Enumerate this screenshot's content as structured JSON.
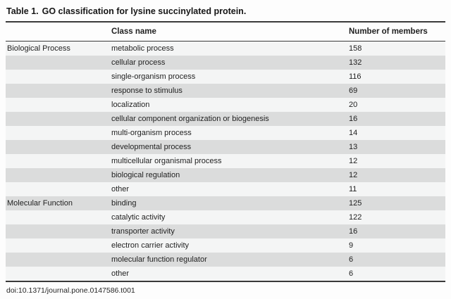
{
  "title": {
    "label": "Table 1.",
    "text": "GO classification for lysine succinylated protein."
  },
  "table": {
    "headers": {
      "category": "",
      "class_name": "Class name",
      "members": "Number of members"
    },
    "rows": [
      {
        "category": "Biological Process",
        "class_name": "metabolic process",
        "members": "158"
      },
      {
        "category": "",
        "class_name": "cellular process",
        "members": "132"
      },
      {
        "category": "",
        "class_name": "single-organism process",
        "members": "116"
      },
      {
        "category": "",
        "class_name": "response to stimulus",
        "members": "69"
      },
      {
        "category": "",
        "class_name": "localization",
        "members": "20"
      },
      {
        "category": "",
        "class_name": "cellular component organization or biogenesis",
        "members": "16"
      },
      {
        "category": "",
        "class_name": "multi-organism process",
        "members": "14"
      },
      {
        "category": "",
        "class_name": "developmental process",
        "members": "13"
      },
      {
        "category": "",
        "class_name": "multicellular organismal process",
        "members": "12"
      },
      {
        "category": "",
        "class_name": "biological regulation",
        "members": "12"
      },
      {
        "category": "",
        "class_name": "other",
        "members": "11"
      },
      {
        "category": "Molecular Function",
        "class_name": "binding",
        "members": "125"
      },
      {
        "category": "",
        "class_name": "catalytic activity",
        "members": "122"
      },
      {
        "category": "",
        "class_name": "transporter activity",
        "members": "16"
      },
      {
        "category": "",
        "class_name": "electron carrier activity",
        "members": "9"
      },
      {
        "category": "",
        "class_name": "molecular function regulator",
        "members": "6"
      },
      {
        "category": "",
        "class_name": "other",
        "members": "6"
      }
    ]
  },
  "footer": {
    "doi": "doi:10.1371/journal.pone.0147586.t001"
  },
  "colors": {
    "stripe_dark": "#dbdcdc",
    "stripe_light": "#f4f5f5",
    "rule": "#3a3a3a",
    "text": "#1f1f1f"
  }
}
